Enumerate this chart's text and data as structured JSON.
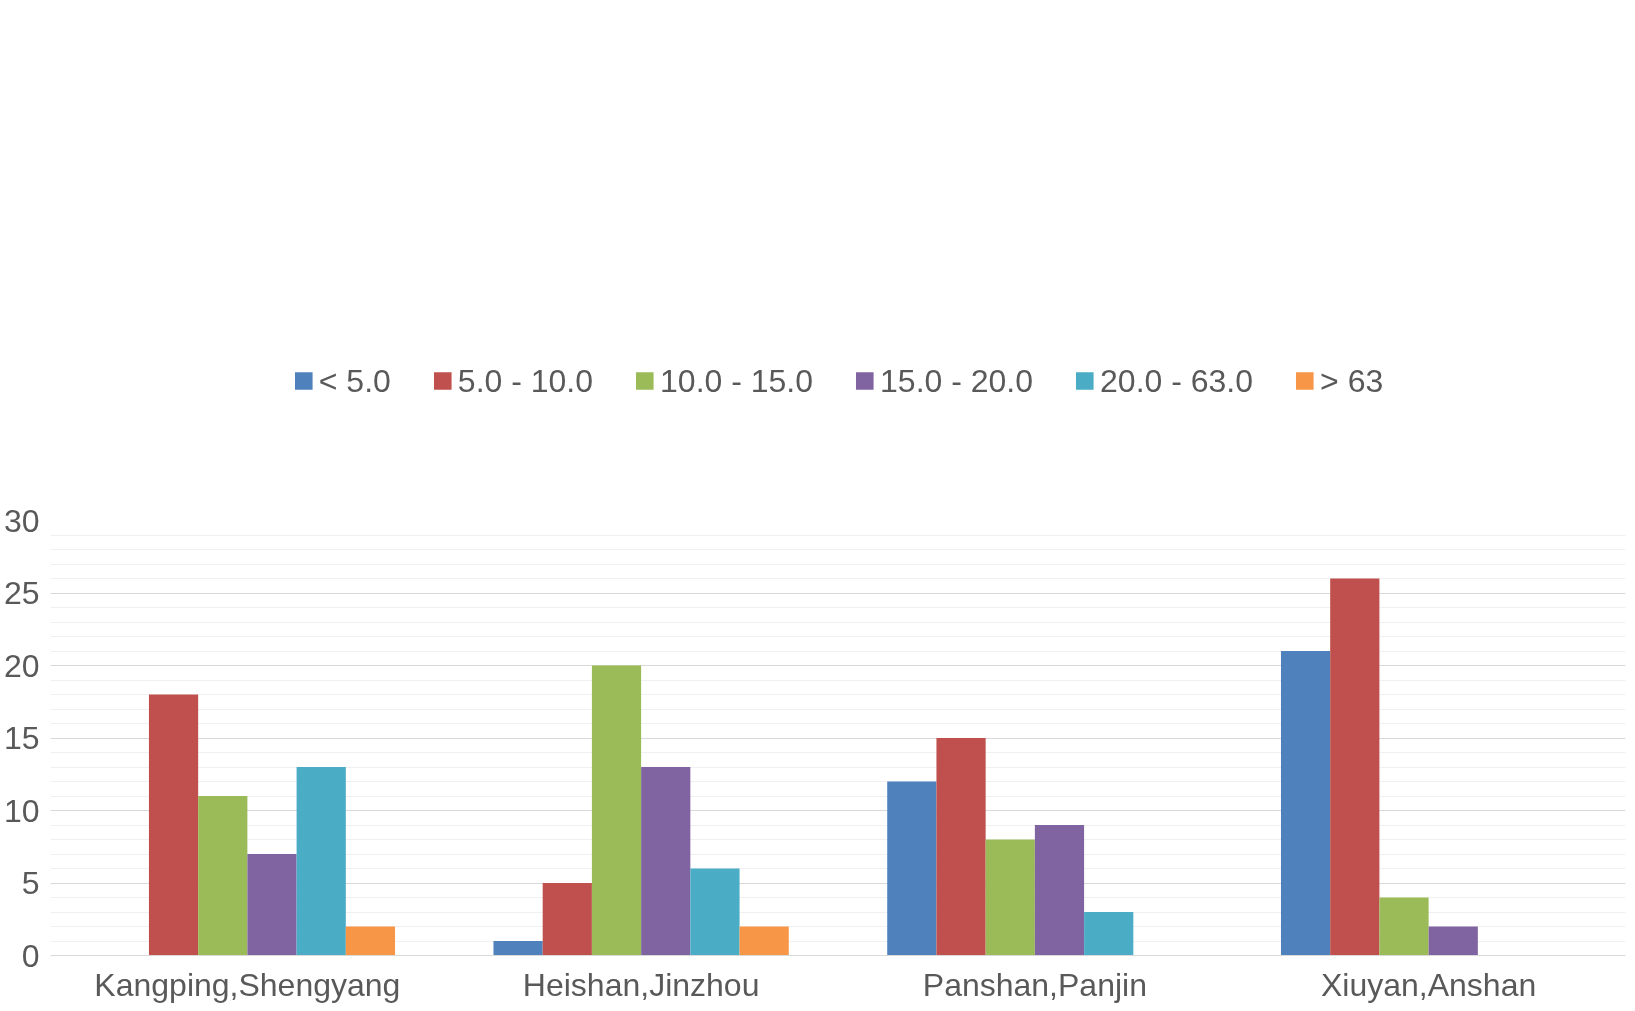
{
  "chart_data": {
    "type": "bar",
    "categories": [
      "Kangping,Shengyang",
      "Heishan,Jinzhou",
      "Panshan,Panjin",
      "Xiuyan,Anshan"
    ],
    "series": [
      {
        "name": "< 5.0",
        "color": "#4f81bd",
        "values": [
          0,
          1,
          12,
          21
        ]
      },
      {
        "name": "5.0 - 10.0",
        "color": "#c0504d",
        "values": [
          18,
          5,
          15,
          26
        ]
      },
      {
        "name": "10.0 - 15.0",
        "color": "#9bbb59",
        "values": [
          11,
          20,
          8,
          4
        ]
      },
      {
        "name": "15.0 - 20.0",
        "color": "#8064a2",
        "values": [
          7,
          13,
          9,
          2
        ]
      },
      {
        "name": "20.0 - 63.0",
        "color": "#4bacc6",
        "values": [
          13,
          6,
          3,
          0
        ]
      },
      {
        "name": "> 63",
        "color": "#f79646",
        "values": [
          2,
          2,
          0,
          0
        ]
      }
    ],
    "ylim": [
      0,
      30
    ],
    "yticks": [
      0,
      5,
      10,
      15,
      20,
      25,
      30
    ],
    "grid": "y",
    "legend": "top"
  }
}
